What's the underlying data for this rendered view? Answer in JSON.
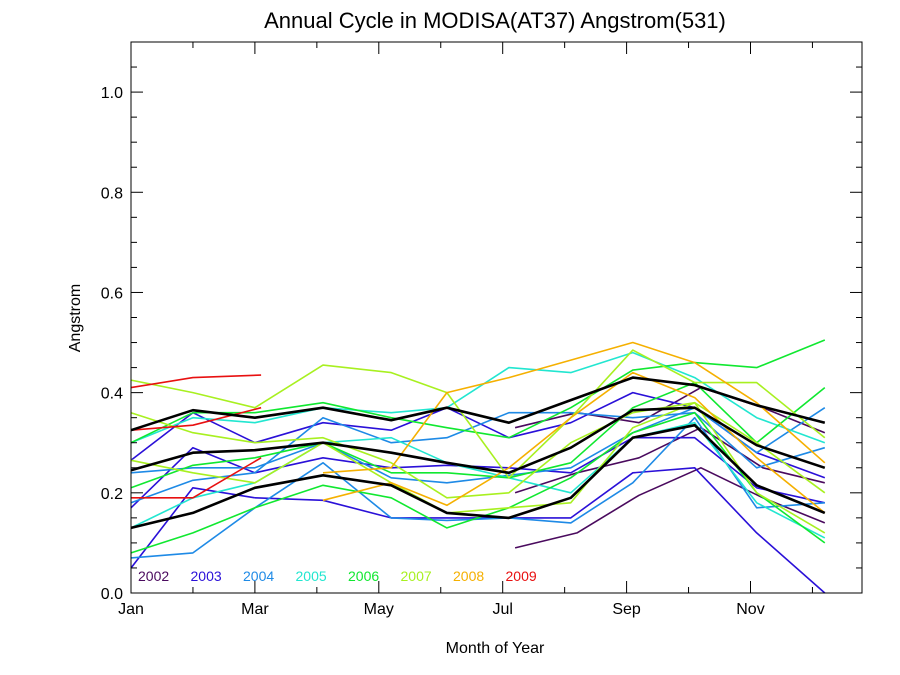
{
  "chart_data": {
    "type": "line",
    "title": "Annual Cycle in MODISA(AT37) Angstrom(531)",
    "xlabel": "Month of Year",
    "ylabel": "Angstrom",
    "xlim": [
      1,
      12.8
    ],
    "ylim": [
      0,
      1.1
    ],
    "x_ticks": [
      {
        "value": 1,
        "label": "Jan"
      },
      {
        "value": 3,
        "label": "Mar"
      },
      {
        "value": 5,
        "label": "May"
      },
      {
        "value": 7,
        "label": "Jul"
      },
      {
        "value": 9,
        "label": "Sep"
      },
      {
        "value": 11,
        "label": "Nov"
      }
    ],
    "y_ticks": [
      {
        "value": 0,
        "label": "0.0"
      },
      {
        "value": 0.2,
        "label": "0.2"
      },
      {
        "value": 0.4,
        "label": "0.4"
      },
      {
        "value": 0.6,
        "label": "0.6"
      },
      {
        "value": 0.8,
        "label": "0.8"
      },
      {
        "value": 1.0,
        "label": "1.0"
      }
    ],
    "grid": false,
    "legend_position": "bottom-left",
    "legend": [
      {
        "label": "2002",
        "color": "#4a0a5e"
      },
      {
        "label": "2003",
        "color": "#2a10d8"
      },
      {
        "label": "2004",
        "color": "#1e8ae6"
      },
      {
        "label": "2005",
        "color": "#22e6d0"
      },
      {
        "label": "2006",
        "color": "#10e830"
      },
      {
        "label": "2007",
        "color": "#a8f020"
      },
      {
        "label": "2008",
        "color": "#f5b000"
      },
      {
        "label": "2009",
        "color": "#e81010"
      }
    ],
    "series": [
      {
        "color": "#4a0a5e",
        "x": [
          7.2,
          8.2,
          9.2,
          10.2,
          11.2,
          12.2
        ],
        "y": [
          0.09,
          0.12,
          0.195,
          0.25,
          0.19,
          0.14
        ]
      },
      {
        "color": "#4a0a5e",
        "x": [
          7.2,
          8.2,
          9.2,
          10.2,
          11.2,
          12.2
        ],
        "y": [
          0.2,
          0.24,
          0.27,
          0.33,
          0.25,
          0.22
        ]
      },
      {
        "color": "#4a0a5e",
        "x": [
          7.2,
          8.2,
          9.2,
          10.2,
          11.2,
          12.2
        ],
        "y": [
          0.33,
          0.36,
          0.34,
          0.41,
          0.37,
          0.32
        ]
      },
      {
        "color": "#2a10d8",
        "x": [
          1,
          2,
          3
        ],
        "y": [
          0.05,
          0.21,
          0.19
        ]
      },
      {
        "color": "#2a10d8",
        "x": [
          1,
          2,
          3,
          4.1,
          5.2,
          6.1,
          7.1,
          8.1,
          9.1,
          10.1,
          11.1,
          12.2
        ],
        "y": [
          0.17,
          0.29,
          0.24,
          0.27,
          0.25,
          0.255,
          0.25,
          0.24,
          0.31,
          0.31,
          0.21,
          0.18
        ]
      },
      {
        "color": "#2a10d8",
        "x": [
          3,
          4.1,
          5.2,
          6.1,
          7.1,
          8.1,
          9.1,
          10.1,
          11.1,
          12.2
        ],
        "y": [
          0.19,
          0.185,
          0.15,
          0.15,
          0.15,
          0.15,
          0.24,
          0.25,
          0.12,
          0.0
        ]
      },
      {
        "color": "#2a10d8",
        "x": [
          1,
          2,
          3,
          4.1,
          5.2,
          6.1,
          7.1,
          8.1,
          9.1,
          10.1,
          11.1,
          12.2
        ],
        "y": [
          0.265,
          0.36,
          0.3,
          0.34,
          0.325,
          0.37,
          0.31,
          0.34,
          0.4,
          0.37,
          0.28,
          0.23
        ]
      },
      {
        "color": "#1e8ae6",
        "x": [
          1,
          2,
          3,
          4.1,
          5.2,
          6.1,
          7.1,
          8.1,
          9.1,
          10.1,
          11.1,
          12.2
        ],
        "y": [
          0.07,
          0.08,
          0.17,
          0.26,
          0.15,
          0.145,
          0.15,
          0.14,
          0.22,
          0.35,
          0.17,
          0.18
        ]
      },
      {
        "color": "#1e8ae6",
        "x": [
          1,
          2,
          3,
          4.1,
          5.2,
          6.1,
          7.1,
          8.1,
          9.1,
          10.1,
          11.1,
          12.2
        ],
        "y": [
          0.18,
          0.225,
          0.24,
          0.35,
          0.3,
          0.31,
          0.36,
          0.36,
          0.35,
          0.36,
          0.25,
          0.29
        ]
      },
      {
        "color": "#1e8ae6",
        "x": [
          1,
          2,
          3,
          4.1,
          5.2,
          6.1,
          7.1,
          8.1,
          9.1,
          10.1,
          11.1,
          12.2
        ],
        "y": [
          0.24,
          0.25,
          0.25,
          0.3,
          0.23,
          0.22,
          0.235,
          0.25,
          0.32,
          0.37,
          0.28,
          0.37
        ]
      },
      {
        "color": "#22e6d0",
        "x": [
          1,
          2,
          3,
          4.1,
          5.2,
          6.1,
          7.1,
          8.1,
          9.1,
          10.1,
          11.1,
          12.2
        ],
        "y": [
          0.13,
          0.19,
          0.22,
          0.3,
          0.31,
          0.26,
          0.23,
          0.2,
          0.31,
          0.34,
          0.18,
          0.11
        ]
      },
      {
        "color": "#22e6d0",
        "x": [
          1,
          2,
          3,
          4.1,
          5.2,
          6.1,
          7.1,
          8.1,
          9.1,
          10.1,
          11.1,
          12.2
        ],
        "y": [
          0.3,
          0.35,
          0.34,
          0.37,
          0.36,
          0.37,
          0.45,
          0.44,
          0.48,
          0.43,
          0.35,
          0.3
        ]
      },
      {
        "color": "#10e830",
        "x": [
          1,
          2,
          3,
          4.1,
          5.2,
          6.1,
          7.1,
          8.1,
          9.1,
          10.1,
          11.1,
          12.2
        ],
        "y": [
          0.08,
          0.12,
          0.17,
          0.215,
          0.19,
          0.13,
          0.17,
          0.23,
          0.32,
          0.36,
          0.2,
          0.1
        ]
      },
      {
        "color": "#10e830",
        "x": [
          1,
          2,
          3,
          4.1,
          5.2,
          6.1,
          7.1,
          8.1,
          9.1,
          10.1,
          11.1,
          12.2
        ],
        "y": [
          0.21,
          0.255,
          0.27,
          0.3,
          0.24,
          0.24,
          0.23,
          0.26,
          0.37,
          0.42,
          0.3,
          0.41
        ]
      },
      {
        "color": "#10e830",
        "x": [
          1,
          2,
          3,
          4.1,
          5.2,
          6.1,
          7.1,
          8.1,
          9.1,
          10.1,
          11.1,
          12.2
        ],
        "y": [
          0.3,
          0.36,
          0.36,
          0.38,
          0.35,
          0.33,
          0.31,
          0.37,
          0.445,
          0.46,
          0.45,
          0.505
        ]
      },
      {
        "color": "#a8f020",
        "x": [
          1,
          2,
          3,
          4.1,
          5.2,
          6.1,
          7.1,
          8.1,
          9.1,
          10.1,
          11.1,
          12.2
        ],
        "y": [
          0.36,
          0.32,
          0.3,
          0.31,
          0.26,
          0.19,
          0.2,
          0.3,
          0.36,
          0.38,
          0.3,
          0.2
        ]
      },
      {
        "color": "#a8f020",
        "x": [
          1,
          2,
          3,
          4.1,
          5.2,
          6.1,
          7.1,
          8.1,
          9.1,
          10.1,
          11.1,
          12.2
        ],
        "y": [
          0.425,
          0.4,
          0.37,
          0.455,
          0.44,
          0.4,
          0.23,
          0.35,
          0.485,
          0.42,
          0.42,
          0.31
        ]
      },
      {
        "color": "#a8f020",
        "x": [
          1,
          2,
          3,
          4.1,
          5.2,
          6.1,
          7.1,
          8.1,
          9.1,
          10.1,
          11.1,
          12.2
        ],
        "y": [
          0.265,
          0.24,
          0.22,
          0.3,
          0.22,
          0.16,
          0.17,
          0.18,
          0.33,
          0.38,
          0.2,
          0.12
        ]
      },
      {
        "color": "#f5b000",
        "x": [
          4.1,
          5.2,
          6.1,
          7.1,
          8.1,
          9.1,
          10.1,
          11.1,
          12.2
        ],
        "y": [
          0.185,
          0.22,
          0.175,
          0.25,
          0.35,
          0.44,
          0.39,
          0.27,
          0.16
        ]
      },
      {
        "color": "#f5b000",
        "x": [
          4.1,
          5.2,
          6.1,
          7.1,
          8.1,
          9.1,
          10.1,
          11.1,
          12.2
        ],
        "y": [
          0.24,
          0.25,
          0.4,
          0.43,
          0.465,
          0.5,
          0.46,
          0.38,
          0.26
        ]
      },
      {
        "color": "#e81010",
        "x": [
          1,
          2,
          3.1
        ],
        "y": [
          0.41,
          0.43,
          0.435
        ]
      },
      {
        "color": "#e81010",
        "x": [
          1,
          2,
          3.1
        ],
        "y": [
          0.325,
          0.335,
          0.37
        ]
      },
      {
        "color": "#e81010",
        "x": [
          1,
          2,
          3.1
        ],
        "y": [
          0.19,
          0.19,
          0.27
        ]
      },
      {
        "color": "#000000",
        "width": 2.6,
        "x": [
          1,
          2,
          3,
          4.1,
          5.2,
          6.1,
          7.1,
          8.1,
          9.1,
          10.1,
          11.1,
          12.2
        ],
        "y": [
          0.325,
          0.365,
          0.35,
          0.37,
          0.345,
          0.37,
          0.34,
          0.385,
          0.43,
          0.415,
          0.375,
          0.34
        ]
      },
      {
        "color": "#000000",
        "width": 2.6,
        "x": [
          1,
          2,
          3,
          4.1,
          5.2,
          6.1,
          7.1,
          8.1,
          9.1,
          10.1,
          11.1,
          12.2
        ],
        "y": [
          0.245,
          0.28,
          0.285,
          0.3,
          0.28,
          0.26,
          0.24,
          0.29,
          0.365,
          0.37,
          0.295,
          0.25
        ]
      },
      {
        "color": "#000000",
        "width": 2.6,
        "x": [
          1,
          2,
          3,
          4.1,
          5.2,
          6.1,
          7.1,
          8.1,
          9.1,
          10.1,
          11.1,
          12.2
        ],
        "y": [
          0.13,
          0.16,
          0.21,
          0.235,
          0.215,
          0.16,
          0.15,
          0.19,
          0.31,
          0.335,
          0.215,
          0.16
        ]
      }
    ]
  }
}
